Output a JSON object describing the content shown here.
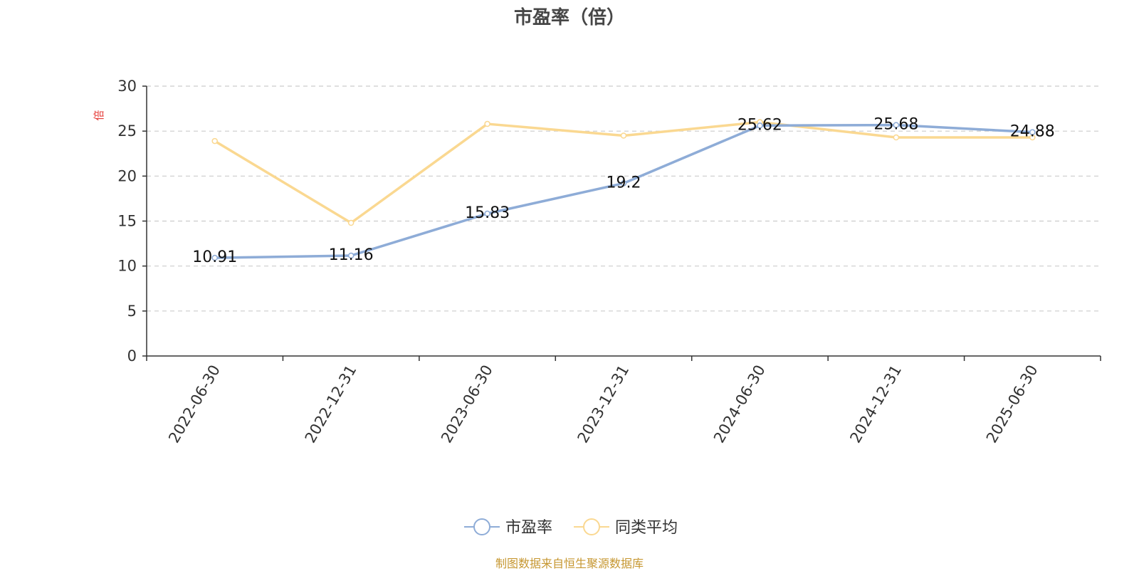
{
  "chart_data": {
    "type": "line",
    "title": "市盈率（倍）",
    "ylabel": "倍",
    "xlabel": "",
    "categories": [
      "2022-06-30",
      "2022-12-31",
      "2023-06-30",
      "2023-12-31",
      "2024-06-30",
      "2024-12-31",
      "2025-06-30"
    ],
    "ylim": [
      0,
      30
    ],
    "yticks": [
      "0",
      "5",
      "10",
      "15",
      "20",
      "25",
      "30"
    ],
    "grid": true,
    "legend_position": "bottom",
    "series": [
      {
        "name": "市盈率",
        "color": "#8eacd7",
        "values": [
          10.91,
          11.16,
          15.83,
          19.2,
          25.62,
          25.68,
          24.88
        ],
        "data_labels": [
          "10.91",
          "11.16",
          "15.83",
          "19.2",
          "25.62",
          "25.68",
          "24.88"
        ]
      },
      {
        "name": "同类平均",
        "color": "#fad891",
        "values": [
          23.9,
          14.8,
          25.8,
          24.5,
          26.0,
          24.3,
          24.3
        ]
      }
    ]
  },
  "footer": "制图数据来自恒生聚源数据库"
}
